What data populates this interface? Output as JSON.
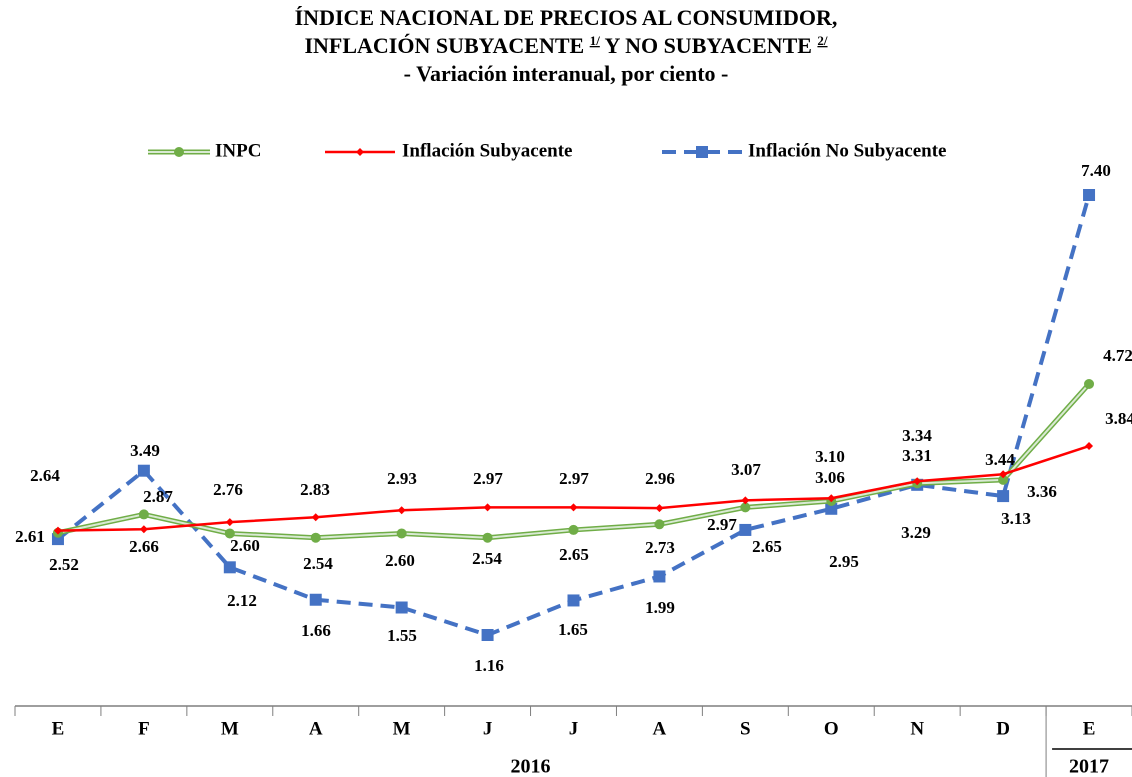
{
  "chart_data": {
    "type": "line",
    "title": {
      "line1": "ÍNDICE NACIONAL DE PRECIOS AL CONSUMIDOR,",
      "line2a": "INFLACIÓN SUBYACENTE ",
      "note1": "1/",
      "line2b": " Y NO SUBYACENTE ",
      "note2": "2/"
    },
    "subtitle": "- Variación interanual, por ciento -",
    "categories": [
      "E",
      "F",
      "M",
      "A",
      "M",
      "J",
      "J",
      "A",
      "S",
      "O",
      "N",
      "D",
      "E"
    ],
    "groups": [
      {
        "label": "2016",
        "span": 12
      },
      {
        "label": "2017",
        "span": 1
      }
    ],
    "series": [
      {
        "name": "INPC",
        "color": "#70ad47",
        "values": [
          2.61,
          2.87,
          2.6,
          2.54,
          2.6,
          2.54,
          2.65,
          2.73,
          2.97,
          3.06,
          3.31,
          3.36,
          4.72
        ],
        "value_labels": [
          "2.61",
          "2.87",
          "2.60",
          "2.54",
          "2.60",
          "2.54",
          "2.65",
          "2.73",
          "2.97",
          "3.06",
          "3.31",
          "3.36",
          "4.72"
        ]
      },
      {
        "name": "Inflación Subyacente",
        "color": "#ff0000",
        "values": [
          2.64,
          2.66,
          2.76,
          2.83,
          2.93,
          2.97,
          2.97,
          2.96,
          3.07,
          3.1,
          3.34,
          3.44,
          3.84
        ],
        "value_labels": [
          "2.64",
          "2.66",
          "2.76",
          "2.83",
          "2.93",
          "2.97",
          "2.97",
          "2.96",
          "3.07",
          "3.10",
          "3.34",
          "3.44",
          "3.84"
        ]
      },
      {
        "name": "Inflación No Subyacente",
        "color": "#4472c4",
        "values": [
          2.52,
          3.49,
          2.12,
          1.66,
          1.55,
          1.16,
          1.65,
          1.99,
          2.65,
          2.95,
          3.29,
          3.13,
          7.4
        ],
        "value_labels": [
          "2.52",
          "3.49",
          "2.12",
          "1.66",
          "1.55",
          "1.16",
          "1.65",
          "1.99",
          "2.65",
          "2.95",
          "3.29",
          "3.13",
          "7.40"
        ]
      }
    ],
    "legend": "top"
  }
}
